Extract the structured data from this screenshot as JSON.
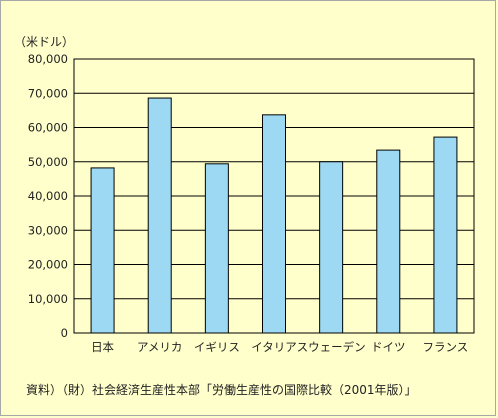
{
  "chart_data": {
    "type": "bar",
    "unit_label": "（米ドル）",
    "categories": [
      "日本",
      "アメリカ",
      "イギリス",
      "イタリア",
      "スウェーデン",
      "ドイツ",
      "フランス"
    ],
    "values": [
      48200,
      68600,
      49400,
      63700,
      50000,
      53400,
      57200
    ],
    "ylim": [
      0,
      80000
    ],
    "yticks": [
      0,
      10000,
      20000,
      30000,
      40000,
      50000,
      60000,
      70000,
      80000
    ],
    "ytick_labels": [
      "0",
      "10,000",
      "20,000",
      "30,000",
      "40,000",
      "50,000",
      "60,000",
      "70,000",
      "80,000"
    ],
    "grid": true,
    "colors": {
      "bar": "#9dd9f3",
      "background": "#ffffcc",
      "grid": "#000000"
    }
  },
  "source": "資料）（財）社会経済生産性本部「労働生産性の国際比較（2001年版）」"
}
